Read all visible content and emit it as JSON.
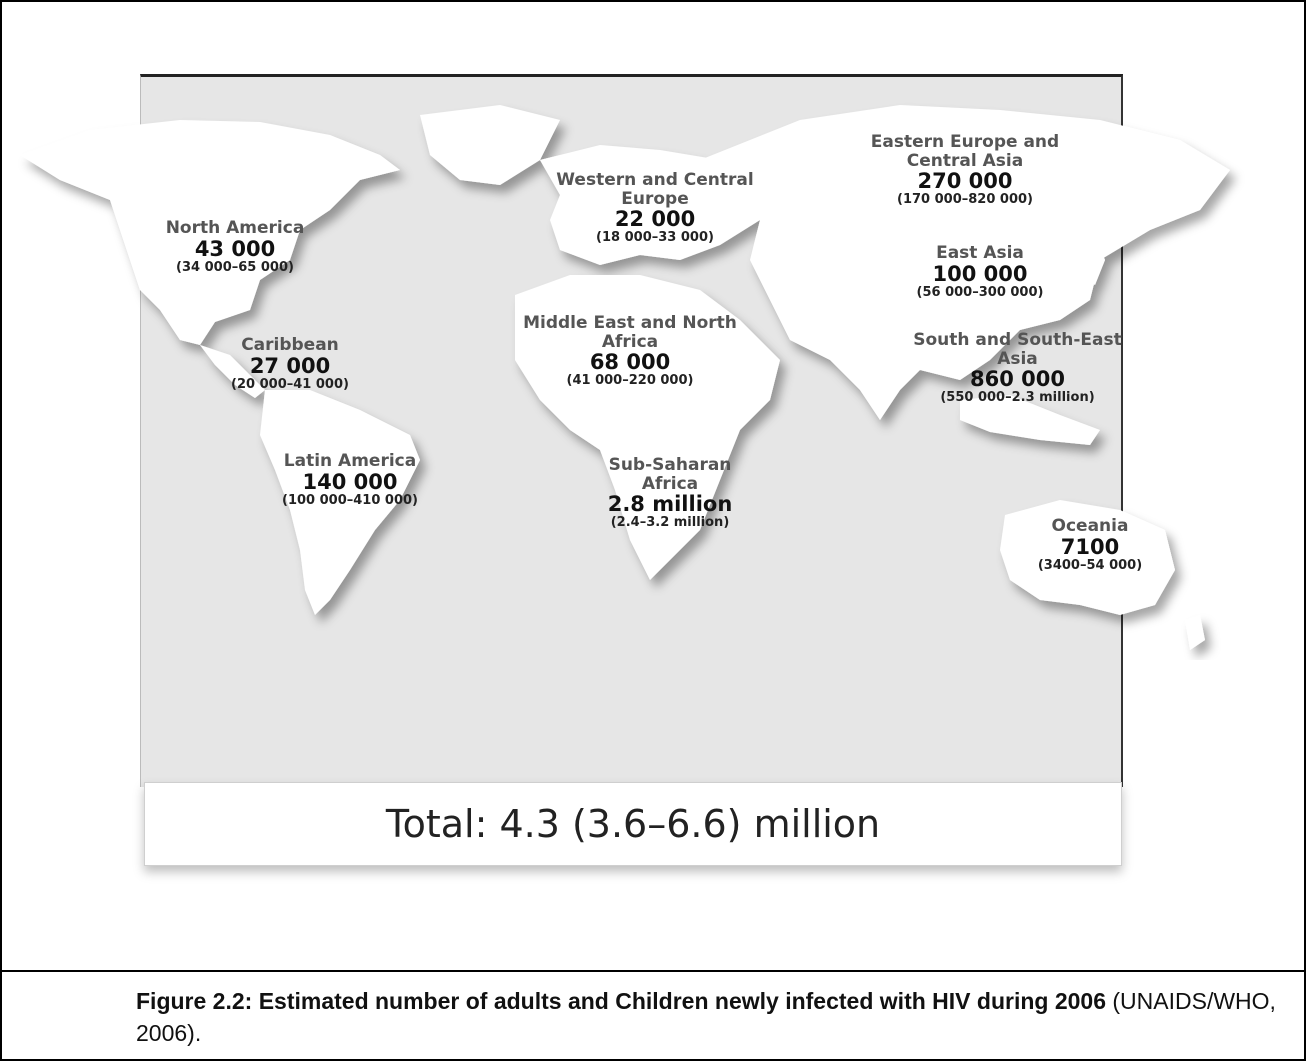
{
  "map": {
    "regions": [
      {
        "id": "north-america",
        "name": "North America",
        "value": "43 000",
        "range": "(34 000–65 000)"
      },
      {
        "id": "caribbean",
        "name": "Caribbean",
        "value": "27 000",
        "range": "(20 000–41 000)"
      },
      {
        "id": "latin-america",
        "name": "Latin America",
        "value": "140 000",
        "range": "(100 000–410 000)"
      },
      {
        "id": "western-central-europe",
        "name": "Western and Central Europe",
        "value": "22 000",
        "range": "(18 000–33 000)"
      },
      {
        "id": "middle-east-north-africa",
        "name": "Middle East and North Africa",
        "value": "68 000",
        "range": "(41 000–220 000)"
      },
      {
        "id": "sub-saharan-africa",
        "name": "Sub-Saharan Africa",
        "value": "2.8 million",
        "range": "(2.4–3.2 million)"
      },
      {
        "id": "eastern-europe-central-asia",
        "name": "Eastern Europe and Central Asia",
        "value": "270 000",
        "range": "(170 000–820 000)"
      },
      {
        "id": "east-asia",
        "name": "East Asia",
        "value": "100 000",
        "range": "(56 000–300 000)"
      },
      {
        "id": "south-southeast-asia",
        "name": "South and South-East Asia",
        "value": "860 000",
        "range": "(550 000–2.3 million)"
      },
      {
        "id": "oceania",
        "name": "Oceania",
        "value": "7100",
        "range": "(3400–54 000)"
      }
    ],
    "total": "Total: 4.3 (3.6–6.6) million"
  },
  "caption": {
    "label": "Figure 2.2: Estimated number of adults and Children newly infected with HIV during 2006",
    "source": " (UNAIDS/WHO, 2006)."
  }
}
